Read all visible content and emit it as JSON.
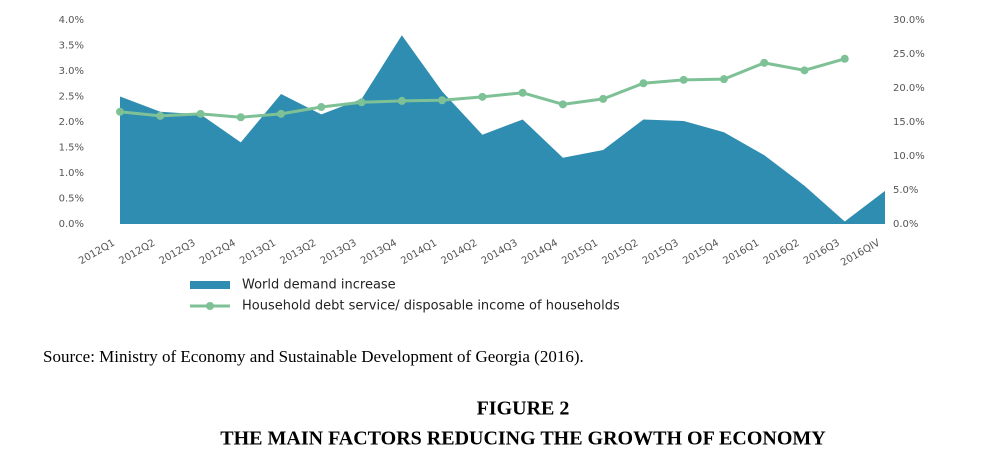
{
  "chart_data": {
    "type": "area-line",
    "categories": [
      "2012Q1",
      "2012Q2",
      "2012Q3",
      "2012Q4",
      "2013Q1",
      "2013Q2",
      "2013Q3",
      "2013Q4",
      "2014Q1",
      "2014Q2",
      "2014Q3",
      "2014Q4",
      "2015Q1",
      "2015Q2",
      "2015Q3",
      "2015Q4",
      "2016Q1",
      "2016Q2",
      "2016Q3",
      "2016QIV"
    ],
    "series": [
      {
        "name": "World demand increase",
        "type": "area",
        "color": "#2e8db0",
        "values": [
          2.5,
          2.2,
          2.15,
          1.6,
          2.55,
          2.15,
          2.45,
          3.7,
          2.6,
          1.75,
          2.05,
          1.3,
          1.45,
          2.05,
          2.02,
          1.8,
          1.35,
          0.75,
          0.05,
          0.65
        ]
      },
      {
        "name": "Household debt service/ disposable income of households",
        "type": "line",
        "axis": "y2",
        "color": "#7fc196",
        "values": [
          16.5,
          15.9,
          16.2,
          15.7,
          16.2,
          17.2,
          17.9,
          18.1,
          18.2,
          18.7,
          19.3,
          17.6,
          18.4,
          20.7,
          21.2,
          21.3,
          23.7,
          22.6,
          24.3,
          null
        ]
      }
    ],
    "ylim": [
      0,
      4
    ],
    "yticks": [
      {
        "value": 0,
        "label": "0.0%"
      },
      {
        "value": 0.5,
        "label": "0.5%"
      },
      {
        "value": 1,
        "label": "1.0%"
      },
      {
        "value": 1.5,
        "label": "1.5%"
      },
      {
        "value": 2,
        "label": "2.0%"
      },
      {
        "value": 2.5,
        "label": "2.5%"
      },
      {
        "value": 3,
        "label": "3.0%"
      },
      {
        "value": 3.5,
        "label": "3.5%"
      },
      {
        "value": 4,
        "label": "4.0%"
      }
    ],
    "y2lim": [
      0,
      30
    ],
    "y2ticks": [
      {
        "value": 0,
        "label": "0.0%"
      },
      {
        "value": 5,
        "label": "5.0%"
      },
      {
        "value": 10,
        "label": "10.0%"
      },
      {
        "value": 15,
        "label": "15.0%"
      },
      {
        "value": 20,
        "label": "20.0%"
      },
      {
        "value": 25,
        "label": "25.0%"
      },
      {
        "value": 30,
        "label": "30.0%"
      }
    ],
    "legend": "bottom-left",
    "source": "Source: Ministry of Economy and Sustainable Development of Georgia (2016).",
    "figure_label": "FIGURE 2",
    "title": "THE MAIN FACTORS REDUCING THE GROWTH OF ECONOMY"
  }
}
